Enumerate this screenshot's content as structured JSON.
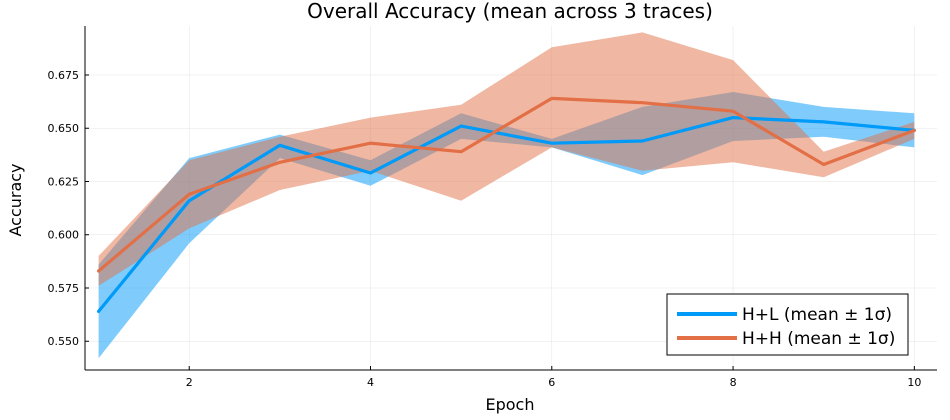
{
  "chart_data": {
    "type": "line",
    "title": "Overall Accuracy (mean across 3 traces)",
    "xlabel": "Epoch",
    "ylabel": "Accuracy",
    "xlim": [
      0.85,
      10.25
    ],
    "ylim": [
      0.5365,
      0.698
    ],
    "x_ticks": [
      2,
      4,
      6,
      8,
      10
    ],
    "y_ticks": [
      0.55,
      0.575,
      0.6,
      0.625,
      0.65,
      0.675
    ],
    "y_tick_labels": [
      "0.550",
      "0.575",
      "0.600",
      "0.625",
      "0.650",
      "0.675"
    ],
    "grid": true,
    "legend_position": "bottom-right",
    "x": [
      1,
      2,
      3,
      4,
      5,
      6,
      7,
      8,
      9,
      10
    ],
    "series": [
      {
        "name": "H+L (mean ± 1σ)",
        "color": "#009af9",
        "band_opacity": 0.5,
        "values": [
          0.564,
          0.616,
          0.642,
          0.629,
          0.651,
          0.643,
          0.644,
          0.655,
          0.653,
          0.649
        ],
        "lower": [
          0.542,
          0.596,
          0.636,
          0.623,
          0.645,
          0.641,
          0.628,
          0.644,
          0.646,
          0.641
        ],
        "upper": [
          0.586,
          0.636,
          0.647,
          0.635,
          0.657,
          0.645,
          0.66,
          0.667,
          0.66,
          0.657
        ]
      },
      {
        "name": "H+H (mean ± 1σ)",
        "color": "#e26f46",
        "band_opacity": 0.5,
        "values": [
          0.583,
          0.619,
          0.634,
          0.643,
          0.639,
          0.664,
          0.662,
          0.658,
          0.633,
          0.649
        ],
        "lower": [
          0.576,
          0.603,
          0.621,
          0.63,
          0.616,
          0.641,
          0.63,
          0.634,
          0.627,
          0.645
        ],
        "upper": [
          0.59,
          0.635,
          0.646,
          0.655,
          0.661,
          0.688,
          0.695,
          0.682,
          0.639,
          0.653
        ]
      }
    ]
  }
}
